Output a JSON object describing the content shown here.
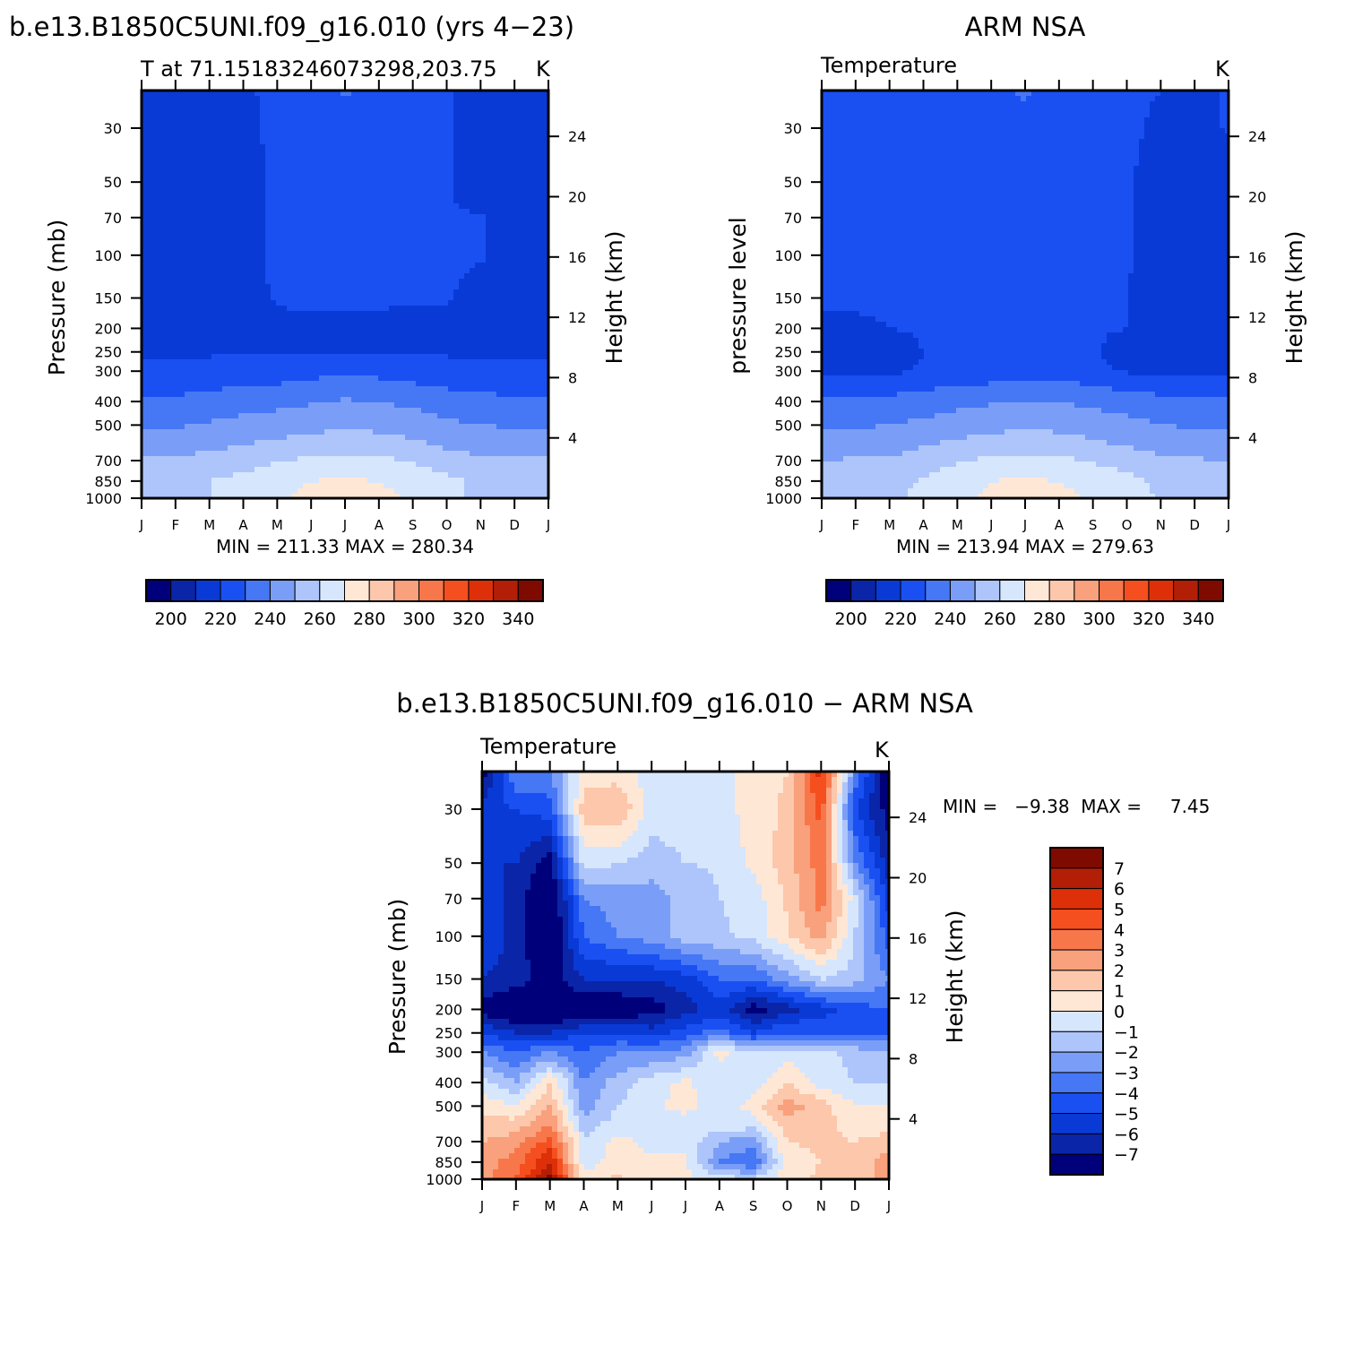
{
  "figure": {
    "title_model": "b.e13.B1850C5UNI.f09_g16.010 (yrs 4−23)",
    "title_obs": "ARM NSA",
    "title_diff": "b.e13.B1850C5UNI.f09_g16.010 − ARM NSA"
  },
  "palettes": {
    "absolute": [
      "#00007a",
      "#0a25a8",
      "#0a3ad6",
      "#1a50f2",
      "#4677f5",
      "#7a9ef7",
      "#adc5fa",
      "#d6e6fd",
      "#ffe7d6",
      "#fcc7aa",
      "#f9a07c",
      "#f8774a",
      "#f54f1f",
      "#dd3008",
      "#b31e07",
      "#7f0a00"
    ],
    "difference": [
      "#00007a",
      "#0a25a8",
      "#0a3ad6",
      "#1a50f2",
      "#4677f5",
      "#7a9ef7",
      "#adc5fa",
      "#d6e6fd",
      "#ffe7d6",
      "#fcc7aa",
      "#f9a07c",
      "#f8774a",
      "#f54f1f",
      "#dd3008",
      "#b31e07",
      "#7f0a00"
    ]
  },
  "chart_data": [
    {
      "type": "heatmap",
      "panel_title": "b.e13.B1850C5UNI.f09_g16.010 (yrs 4−23)",
      "left_label": "T at 71.15183246073298,203.75",
      "unit": "K",
      "ylabel": "Pressure (mb)",
      "ylabel_right": "Height (km)",
      "x_ticks": [
        "J",
        "F",
        "M",
        "A",
        "M",
        "J",
        "J",
        "A",
        "S",
        "O",
        "N",
        "D",
        "J"
      ],
      "y_ticks": [
        30,
        50,
        70,
        100,
        150,
        200,
        250,
        300,
        400,
        500,
        700,
        850,
        1000
      ],
      "y_ticks_right": [
        24,
        20,
        16,
        12,
        8,
        4
      ],
      "ylim": [
        1000,
        21
      ],
      "y_scale": "log",
      "min_max_text": "MIN = 211.33  MAX = 280.34",
      "levels": [
        190,
        200,
        210,
        220,
        230,
        240,
        250,
        260,
        270,
        280,
        290,
        300,
        310,
        320,
        330,
        340
      ],
      "colorbar_labels": [
        "200",
        "220",
        "240",
        "260",
        "280",
        "300",
        "320",
        "340"
      ],
      "x": [
        0,
        1,
        2,
        3,
        4,
        5,
        6,
        7,
        8,
        9,
        10,
        11,
        12
      ],
      "pressure": [
        1000,
        850,
        700,
        600,
        500,
        400,
        300,
        250,
        200,
        150,
        100,
        70,
        50,
        30,
        21
      ],
      "values": [
        [
          257,
          258,
          260,
          263,
          269,
          272,
          274,
          273,
          268,
          262,
          258,
          257,
          257
        ],
        [
          255,
          257,
          260,
          263,
          267,
          270,
          271,
          270,
          266,
          262,
          258,
          256,
          255
        ],
        [
          251,
          252,
          254,
          256,
          259,
          262,
          263,
          262,
          259,
          255,
          252,
          251,
          251
        ],
        [
          244,
          245,
          247,
          250,
          252,
          254,
          256,
          255,
          252,
          248,
          246,
          244,
          244
        ],
        [
          238,
          239,
          241,
          243,
          245,
          247,
          248,
          247,
          245,
          242,
          240,
          239,
          238
        ],
        [
          231,
          232,
          234,
          236,
          237,
          239,
          241,
          240,
          238,
          235,
          233,
          232,
          231
        ],
        [
          222,
          222,
          223,
          224,
          225,
          227,
          228,
          227,
          225,
          223,
          222,
          222,
          222
        ],
        [
          219,
          219,
          219,
          219,
          220,
          220,
          220,
          220,
          219,
          219,
          219,
          219,
          219
        ],
        [
          215,
          215,
          215,
          215,
          217,
          218,
          218,
          217,
          216,
          216,
          216,
          215,
          215
        ],
        [
          215,
          215,
          215,
          216,
          221,
          222,
          222,
          222,
          221,
          221,
          216,
          215,
          215
        ],
        [
          214,
          214,
          214,
          217,
          222,
          223,
          223,
          223,
          222,
          222,
          221,
          214,
          214
        ],
        [
          213,
          213,
          213,
          217,
          222,
          223,
          223,
          223,
          222,
          221,
          221,
          213,
          213
        ],
        [
          213,
          213,
          213,
          216,
          222,
          223,
          223,
          224,
          222,
          221,
          213,
          213,
          213
        ],
        [
          213,
          213,
          214,
          218,
          222,
          224,
          226,
          223,
          222,
          221,
          213,
          213,
          213
        ],
        [
          213,
          213,
          214,
          218,
          223,
          225,
          231,
          225,
          222,
          221,
          213,
          213,
          213
        ]
      ]
    },
    {
      "type": "heatmap",
      "panel_title": "ARM NSA",
      "left_label": "Temperature",
      "unit": "K",
      "ylabel": "pressure level",
      "ylabel_right": "Height (km)",
      "x_ticks": [
        "J",
        "F",
        "M",
        "A",
        "M",
        "J",
        "J",
        "A",
        "S",
        "O",
        "N",
        "D",
        "J"
      ],
      "y_ticks": [
        30,
        50,
        70,
        100,
        150,
        200,
        250,
        300,
        400,
        500,
        700,
        850,
        1000
      ],
      "y_ticks_right": [
        24,
        20,
        16,
        12,
        8,
        4
      ],
      "ylim": [
        1000,
        21
      ],
      "y_scale": "log",
      "min_max_text": "MIN = 213.94  MAX = 279.63",
      "levels": [
        190,
        200,
        210,
        220,
        230,
        240,
        250,
        260,
        270,
        280,
        290,
        300,
        310,
        320,
        330,
        340
      ],
      "colorbar_labels": [
        "200",
        "220",
        "240",
        "260",
        "280",
        "300",
        "320",
        "340"
      ],
      "x": [
        0,
        1,
        2,
        3,
        4,
        5,
        6,
        7,
        8,
        9,
        10,
        11,
        12
      ],
      "pressure": [
        1000,
        850,
        700,
        600,
        500,
        400,
        300,
        250,
        200,
        150,
        100,
        70,
        50,
        30,
        21
      ],
      "values": [
        [
          256,
          257,
          258,
          262,
          268,
          272,
          274,
          273,
          269,
          264,
          259,
          257,
          256
        ],
        [
          254,
          256,
          257,
          261,
          266,
          270,
          271,
          270,
          266,
          263,
          258,
          256,
          254
        ],
        [
          250,
          251,
          251,
          255,
          259,
          262,
          263,
          262,
          259,
          256,
          252,
          251,
          250
        ],
        [
          244,
          245,
          246,
          249,
          252,
          254,
          256,
          255,
          252,
          249,
          246,
          244,
          244
        ],
        [
          238,
          239,
          240,
          242,
          245,
          247,
          248,
          247,
          245,
          243,
          240,
          239,
          238
        ],
        [
          231,
          232,
          233,
          235,
          237,
          239,
          241,
          240,
          238,
          236,
          233,
          232,
          231
        ],
        [
          217,
          218,
          218,
          221,
          223,
          224,
          226,
          225,
          223,
          219,
          218,
          218,
          218
        ],
        [
          215,
          216,
          216,
          220,
          221,
          222,
          222,
          222,
          221,
          216,
          216,
          216,
          216
        ],
        [
          216,
          218,
          220,
          221,
          222,
          222,
          222,
          222,
          221,
          220,
          216,
          216,
          216
        ],
        [
          222,
          222,
          222,
          222,
          222,
          222,
          222,
          222,
          221,
          220,
          216,
          216,
          216
        ],
        [
          222,
          222,
          222,
          222,
          222,
          222,
          222,
          222,
          222,
          221,
          215,
          215,
          215
        ],
        [
          222,
          222,
          222,
          222,
          222,
          222,
          222,
          222,
          222,
          221,
          215,
          215,
          215
        ],
        [
          222,
          222,
          222,
          222,
          222,
          222,
          222,
          222,
          222,
          221,
          216,
          215,
          215
        ],
        [
          222,
          222,
          222,
          222,
          222,
          222,
          222,
          222,
          222,
          222,
          218,
          216,
          221
        ],
        [
          222,
          222,
          222,
          222,
          222,
          222,
          233,
          222,
          222,
          222,
          220,
          217,
          221
        ]
      ]
    },
    {
      "type": "heatmap",
      "panel_title": "b.e13.B1850C5UNI.f09_g16.010 − ARM NSA",
      "left_label": "Temperature",
      "unit": "K",
      "ylabel": "Pressure (mb)",
      "ylabel_right": "Height (km)",
      "x_ticks": [
        "J",
        "F",
        "M",
        "A",
        "M",
        "J",
        "J",
        "A",
        "S",
        "O",
        "N",
        "D",
        "J"
      ],
      "y_ticks": [
        30,
        50,
        70,
        100,
        150,
        200,
        250,
        300,
        400,
        500,
        700,
        850,
        1000
      ],
      "y_ticks_right": [
        24,
        20,
        16,
        12,
        8,
        4
      ],
      "ylim": [
        1000,
        21
      ],
      "y_scale": "log",
      "min_max_text": "MIN =   −9.38  MAX =     7.45",
      "levels": [
        -8,
        -7,
        -6,
        -5,
        -4,
        -3,
        -2,
        -1,
        0,
        1,
        2,
        3,
        4,
        5,
        6,
        7,
        8
      ],
      "colorbar_labels": [
        "7",
        "6",
        "5",
        "4",
        "3",
        "2",
        "1",
        "0",
        "−1",
        "−2",
        "−3",
        "−4",
        "−5",
        "−6",
        "−7"
      ],
      "x": [
        0,
        1,
        2,
        3,
        4,
        5,
        6,
        7,
        8,
        9,
        10,
        11,
        12
      ],
      "pressure": [
        1000,
        850,
        700,
        600,
        500,
        400,
        300,
        250,
        200,
        150,
        100,
        70,
        50,
        30,
        21
      ],
      "values": [
        [
          2.5,
          4,
          7.2,
          0.5,
          1.2,
          0.3,
          0.2,
          -0.5,
          -1,
          0.6,
          1.2,
          1.5,
          2.5
        ],
        [
          2.5,
          3.5,
          6,
          -0.5,
          0.5,
          0.2,
          0.3,
          -3,
          -4,
          0.5,
          1,
          1.2,
          2.5
        ],
        [
          2,
          2.5,
          4.5,
          -0.8,
          0.3,
          -0.3,
          -0.3,
          -2,
          -2.5,
          1,
          1.2,
          1,
          1.5
        ],
        [
          1.5,
          1.5,
          3,
          -1.5,
          -0.5,
          -0.5,
          -0.7,
          -0.5,
          -0.6,
          1.5,
          1.5,
          0.5,
          0.5
        ],
        [
          0.6,
          0,
          2,
          -2.5,
          -1,
          -0.3,
          0.5,
          -0.7,
          0.5,
          2.5,
          1.5,
          0,
          0
        ],
        [
          -0.5,
          -2,
          1,
          -3,
          -1.5,
          -0.5,
          0.3,
          -1,
          -0.5,
          1,
          -0.5,
          -1,
          -1
        ],
        [
          -3,
          -4,
          -3,
          -4,
          -3,
          -3,
          -2.5,
          0.5,
          -1,
          -0.5,
          -0.5,
          -1.5,
          -2
        ],
        [
          -5,
          -6,
          -6,
          -5,
          -5,
          -5.5,
          -4.5,
          -3.5,
          -5,
          -4,
          -4,
          -4,
          -4
        ],
        [
          -7.5,
          -8.5,
          -8.5,
          -8.2,
          -8,
          -7.5,
          -6.5,
          -5.5,
          -7.5,
          -6.5,
          -5.5,
          -4.5,
          -4
        ],
        [
          -6,
          -6.5,
          -7.5,
          -6,
          -6,
          -6,
          -5.5,
          -4,
          -4,
          -2.5,
          -1,
          -1.5,
          -3
        ],
        [
          -5,
          -6.5,
          -8.5,
          -4,
          -3,
          -2.5,
          -1.5,
          -1.2,
          -0.7,
          0.8,
          2.5,
          -1,
          -4.5
        ],
        [
          -5,
          -6.5,
          -8.5,
          -3,
          -2.5,
          -2.5,
          -1.5,
          -1,
          -0.6,
          1.2,
          3.5,
          -0.5,
          -5.5
        ],
        [
          -6,
          -6,
          -7.5,
          -0.5,
          -1,
          -1.5,
          -1,
          -0.9,
          0.3,
          1.5,
          3.5,
          -3,
          -6.5
        ],
        [
          -5.5,
          -5,
          -4.5,
          1.5,
          2,
          -0.5,
          -0.5,
          -0.5,
          0.5,
          1.2,
          4.5,
          -5,
          -7.5
        ],
        [
          -7.5,
          -3,
          -3,
          0.5,
          0.5,
          -0.5,
          -0.5,
          -0.5,
          0.5,
          1,
          5.5,
          -3,
          -8.5
        ]
      ]
    }
  ]
}
